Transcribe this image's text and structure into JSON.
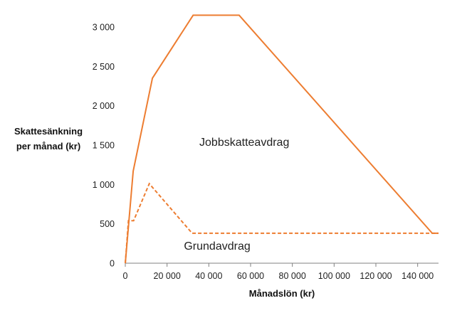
{
  "chart_data": {
    "type": "line",
    "title": "",
    "xlabel": "Månadslön (kr)",
    "ylabel": "Skattesänkning per månad (kr)",
    "xlim": [
      0,
      150000
    ],
    "ylim": [
      0,
      3200
    ],
    "x_ticks": [
      0,
      20000,
      40000,
      60000,
      80000,
      100000,
      120000,
      140000
    ],
    "x_tick_labels": [
      "0",
      "20 000",
      "40 000",
      "60 000",
      "80 000",
      "100 000",
      "120 000",
      "140 000"
    ],
    "y_ticks": [
      0,
      500,
      1000,
      1500,
      2000,
      2500,
      3000
    ],
    "y_tick_labels": [
      "0",
      "500",
      "1 000",
      "1 500",
      "2 000",
      "2 500",
      "3 000"
    ],
    "grid": false,
    "color": "#ED7D31",
    "series": [
      {
        "name": "Jobbskatteavdrag",
        "line_style": "solid",
        "x": [
          0,
          3800,
          13000,
          32500,
          54500,
          147000,
          150000
        ],
        "y": [
          0,
          1170,
          2350,
          3150,
          3150,
          380,
          380
        ]
      },
      {
        "name": "Grundavdrag",
        "line_style": "dashed",
        "x": [
          0,
          1500,
          4000,
          11500,
          32000,
          150000
        ],
        "y": [
          0,
          540,
          540,
          1010,
          380,
          380
        ]
      }
    ],
    "annotations": [
      {
        "text": "Jobbskatteavdrag",
        "x": 57000,
        "y": 1490
      },
      {
        "text": "Grundavdrag",
        "x": 44000,
        "y": 170
      }
    ]
  }
}
